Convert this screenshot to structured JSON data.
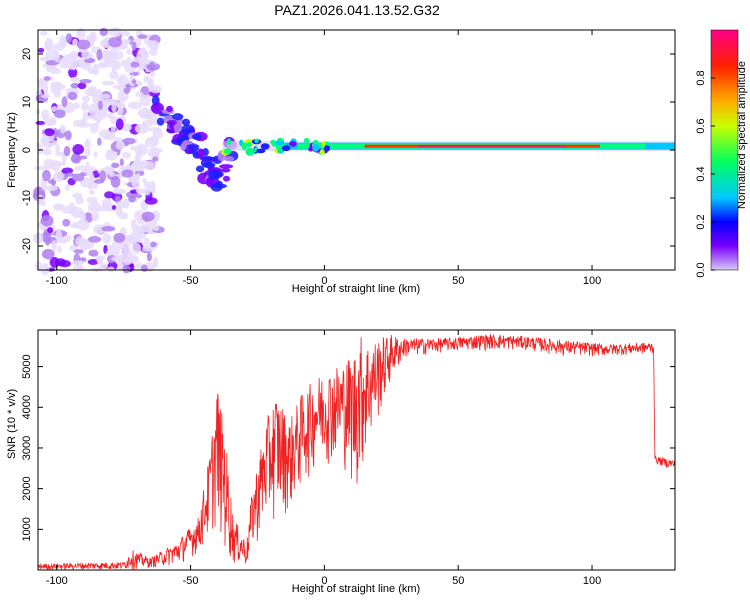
{
  "chart_data": [
    {
      "type": "heatmap",
      "title": "PAZ1.2026.041.13.52.G32",
      "xlabel": "Height of straight line (km)",
      "ylabel": "Frequency (Hz)",
      "xlim": [
        -107,
        131
      ],
      "ylim": [
        -25,
        25
      ],
      "xticks": [
        -100,
        -50,
        0,
        50,
        100
      ],
      "yticks": [
        -20,
        -10,
        0,
        10,
        20
      ],
      "grid": false,
      "colorbar": {
        "label": "Normalized spectral amplitude",
        "range": [
          0,
          1
        ],
        "ticks": [
          0.0,
          0.2,
          0.4,
          0.6,
          0.8
        ],
        "colormap": "rainbow (purple-blue-cyan-green-yellow-red-magenta)"
      },
      "description_points": {
        "scatter_region_x": [
          -107,
          -62
        ],
        "scatter_region_y": [
          -25,
          25
        ],
        "converging_trace": [
          [
            -62,
            9
          ],
          [
            -55,
            5
          ],
          [
            -50,
            2
          ],
          [
            -45,
            -2
          ],
          [
            -40,
            -6
          ],
          [
            -35,
            0
          ]
        ],
        "steady_line": {
          "x": [
            -38,
            131
          ],
          "y": 0.8,
          "peak_amplitude": 0.92
        }
      }
    },
    {
      "type": "line",
      "xlabel": "Height of straight line (km)",
      "ylabel": "SNR (10 * v/v)",
      "xlim": [
        -107,
        131
      ],
      "ylim": [
        0,
        5900
      ],
      "xticks": [
        -100,
        -50,
        0,
        50,
        100
      ],
      "yticks": [
        1000,
        2000,
        3000,
        4000,
        5000
      ],
      "grid": false,
      "series": [
        {
          "name": "SNR",
          "color": "#ee2222",
          "envelope": [
            {
              "x": -107,
              "lo": 0,
              "hi": 150
            },
            {
              "x": -75,
              "lo": 0,
              "hi": 200
            },
            {
              "x": -72,
              "lo": 0,
              "hi": 500
            },
            {
              "x": -65,
              "lo": 50,
              "hi": 300
            },
            {
              "x": -55,
              "lo": 100,
              "hi": 700
            },
            {
              "x": -47,
              "lo": 400,
              "hi": 1300
            },
            {
              "x": -43,
              "lo": 700,
              "hi": 2800
            },
            {
              "x": -40,
              "lo": 1000,
              "hi": 4600
            },
            {
              "x": -37,
              "lo": 300,
              "hi": 3300
            },
            {
              "x": -34,
              "lo": 100,
              "hi": 1300
            },
            {
              "x": -29,
              "lo": 50,
              "hi": 700
            },
            {
              "x": -27,
              "lo": 400,
              "hi": 2000
            },
            {
              "x": -22,
              "lo": 1000,
              "hi": 3600
            },
            {
              "x": -18,
              "lo": 1200,
              "hi": 4400
            },
            {
              "x": -13,
              "lo": 1400,
              "hi": 3700
            },
            {
              "x": -8,
              "lo": 2000,
              "hi": 4400
            },
            {
              "x": -2,
              "lo": 2600,
              "hi": 4800
            },
            {
              "x": 3,
              "lo": 2600,
              "hi": 5000
            },
            {
              "x": 8,
              "lo": 2400,
              "hi": 5200
            },
            {
              "x": 11,
              "lo": 1700,
              "hi": 5400
            },
            {
              "x": 13,
              "lo": 2000,
              "hi": 5850
            },
            {
              "x": 17,
              "lo": 3000,
              "hi": 5600
            },
            {
              "x": 20,
              "lo": 3600,
              "hi": 5700
            },
            {
              "x": 25,
              "lo": 4600,
              "hi": 5800
            },
            {
              "x": 30,
              "lo": 5200,
              "hi": 5700
            },
            {
              "x": 45,
              "lo": 5350,
              "hi": 5700
            },
            {
              "x": 60,
              "lo": 5400,
              "hi": 5800
            },
            {
              "x": 75,
              "lo": 5400,
              "hi": 5750
            },
            {
              "x": 90,
              "lo": 5250,
              "hi": 5650
            },
            {
              "x": 105,
              "lo": 5250,
              "hi": 5550
            },
            {
              "x": 123,
              "lo": 5300,
              "hi": 5600
            },
            {
              "x": 123.5,
              "lo": 2600,
              "hi": 2800
            },
            {
              "x": 131,
              "lo": 2450,
              "hi": 2700
            }
          ]
        }
      ]
    }
  ]
}
